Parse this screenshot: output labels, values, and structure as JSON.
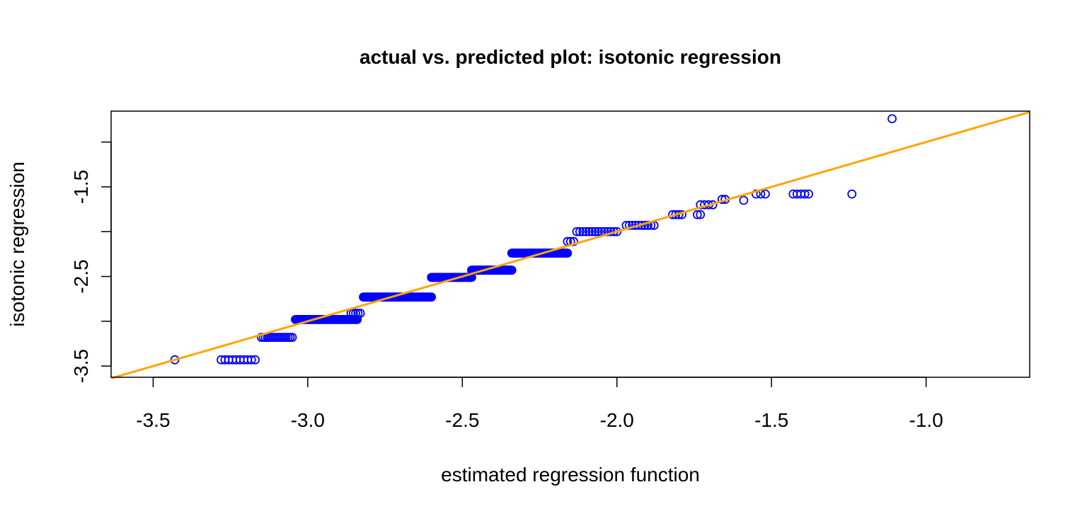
{
  "chart_data": {
    "type": "scatter",
    "title": "actual vs. predicted plot: isotonic regression",
    "xlabel": "estimated regression function",
    "ylabel": "isotonic regression",
    "xlim": [
      -3.636,
      -0.665
    ],
    "ylim": [
      -3.625,
      -0.655
    ],
    "xticks": [
      -3.5,
      -3.0,
      -2.5,
      -2.0,
      -1.5,
      -1.0
    ],
    "xtick_labels": [
      "-3.5",
      "-3.0",
      "-2.5",
      "-2.0",
      "-1.5",
      "-1.0"
    ],
    "yticks": [
      -3.5,
      -2.5,
      -1.5
    ],
    "ytick_labels": [
      "-3.5",
      "-2.5",
      "-1.5"
    ],
    "grid": false,
    "colors": {
      "points": "#0000ff",
      "line": "#ffa500"
    },
    "reference_line": {
      "intercept": 0,
      "slope": 1
    },
    "point_groups": [
      {
        "x_from": -3.43,
        "x_to": -3.43,
        "y": -3.43,
        "count": 1
      },
      {
        "x_from": -3.28,
        "x_to": -3.17,
        "y": -3.43,
        "count": 10
      },
      {
        "x_from": -3.15,
        "x_to": -3.05,
        "y": -3.18,
        "count": 16
      },
      {
        "x_from": -3.04,
        "x_to": -2.84,
        "y": -2.98,
        "count": 60
      },
      {
        "x_from": -2.86,
        "x_to": -2.83,
        "y": -2.91,
        "count": 5
      },
      {
        "x_from": -2.82,
        "x_to": -2.6,
        "y": -2.73,
        "count": 60
      },
      {
        "x_from": -2.6,
        "x_to": -2.47,
        "y": -2.51,
        "count": 50
      },
      {
        "x_from": -2.47,
        "x_to": -2.34,
        "y": -2.43,
        "count": 50
      },
      {
        "x_from": -2.34,
        "x_to": -2.16,
        "y": -2.24,
        "count": 60
      },
      {
        "x_from": -2.16,
        "x_to": -2.14,
        "y": -2.11,
        "count": 3
      },
      {
        "x_from": -2.13,
        "x_to": -2.0,
        "y": -2.0,
        "count": 14
      },
      {
        "x_from": -1.97,
        "x_to": -1.88,
        "y": -1.93,
        "count": 10
      },
      {
        "x_from": -1.82,
        "x_to": -1.79,
        "y": -1.81,
        "count": 4
      },
      {
        "x_from": -1.74,
        "x_to": -1.73,
        "y": -1.81,
        "count": 2
      },
      {
        "x_from": -1.73,
        "x_to": -1.69,
        "y": -1.7,
        "count": 4
      },
      {
        "x_from": -1.66,
        "x_to": -1.65,
        "y": -1.64,
        "count": 2
      },
      {
        "x_from": -1.59,
        "x_to": -1.59,
        "y": -1.65,
        "count": 1
      },
      {
        "x_from": -1.55,
        "x_to": -1.52,
        "y": -1.58,
        "count": 3
      },
      {
        "x_from": -1.43,
        "x_to": -1.38,
        "y": -1.58,
        "count": 5
      },
      {
        "x_from": -1.24,
        "x_to": -1.24,
        "y": -1.58,
        "count": 1
      },
      {
        "x_from": -1.11,
        "x_to": -1.11,
        "y": -0.74,
        "count": 1
      }
    ]
  }
}
